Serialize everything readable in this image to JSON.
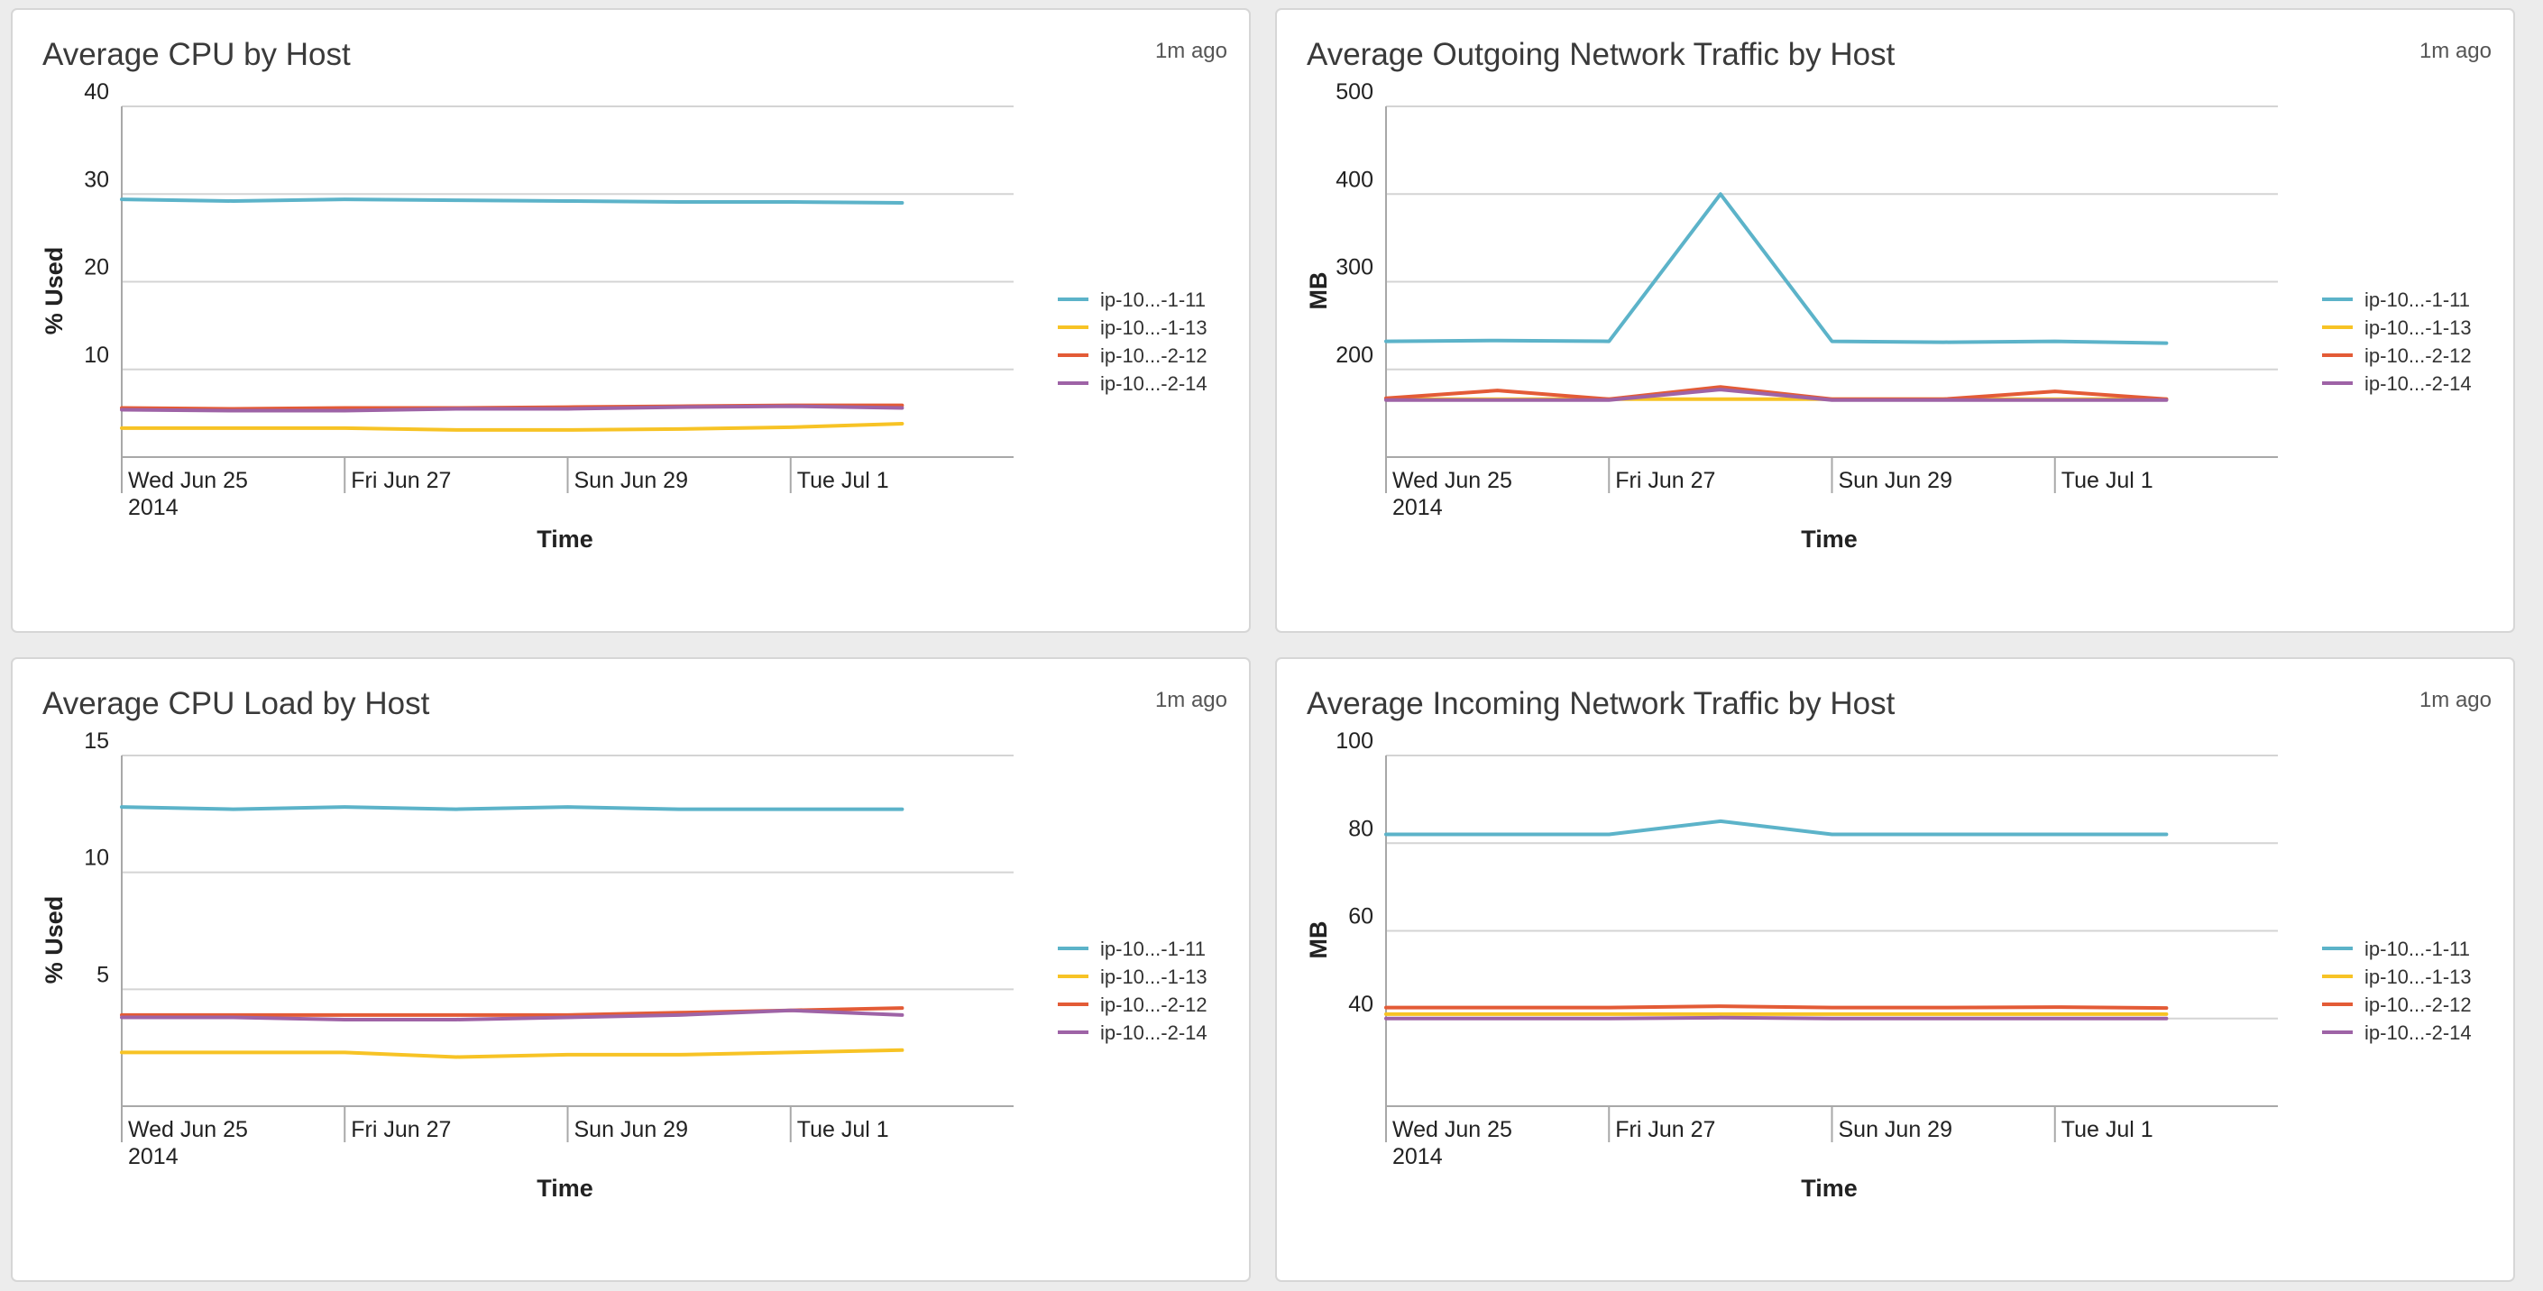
{
  "panels": [
    {
      "title": "Average CPU by Host",
      "updated": "1m ago",
      "chart_data": {
        "type": "line",
        "xlabel": "Time",
        "ylabel": "% Used",
        "ylim": [
          0,
          40
        ],
        "yticks": [
          10,
          20,
          30,
          40
        ],
        "x_domain": [
          "2014-06-25",
          "2014-07-03"
        ],
        "xticks": [
          {
            "date": "2014-06-25",
            "label": "Wed Jun 25",
            "sublabel": "2014"
          },
          {
            "date": "2014-06-27",
            "label": "Fri Jun 27",
            "sublabel": ""
          },
          {
            "date": "2014-06-29",
            "label": "Sun Jun 29",
            "sublabel": ""
          },
          {
            "date": "2014-07-01",
            "label": "Tue Jul 1",
            "sublabel": ""
          }
        ],
        "x": [
          "2014-06-25",
          "2014-06-26",
          "2014-06-27",
          "2014-06-28",
          "2014-06-29",
          "2014-06-30",
          "2014-07-01",
          "2014-07-02"
        ],
        "grid": true,
        "legend": "right",
        "series": [
          {
            "name": "ip-10...-1-11",
            "color": "#5cb3c9",
            "values": [
              29.4,
              29.2,
              29.4,
              29.3,
              29.2,
              29.1,
              29.1,
              29.0
            ]
          },
          {
            "name": "ip-10...-1-13",
            "color": "#f7c325",
            "values": [
              3.3,
              3.3,
              3.3,
              3.1,
              3.1,
              3.2,
              3.4,
              3.8
            ]
          },
          {
            "name": "ip-10...-2-12",
            "color": "#e35b36",
            "values": [
              5.6,
              5.5,
              5.6,
              5.6,
              5.7,
              5.8,
              5.9,
              5.9
            ]
          },
          {
            "name": "ip-10...-2-14",
            "color": "#9e63a6",
            "values": [
              5.4,
              5.3,
              5.3,
              5.5,
              5.5,
              5.7,
              5.8,
              5.6
            ]
          }
        ]
      }
    },
    {
      "title": "Average Outgoing Network Traffic by Host",
      "updated": "1m ago",
      "chart_data": {
        "type": "line",
        "xlabel": "Time",
        "ylabel": "MB",
        "ylim": [
          100,
          500
        ],
        "yticks": [
          200,
          300,
          400,
          500
        ],
        "x_domain": [
          "2014-06-25",
          "2014-07-03"
        ],
        "xticks": [
          {
            "date": "2014-06-25",
            "label": "Wed Jun 25",
            "sublabel": "2014"
          },
          {
            "date": "2014-06-27",
            "label": "Fri Jun 27",
            "sublabel": ""
          },
          {
            "date": "2014-06-29",
            "label": "Sun Jun 29",
            "sublabel": ""
          },
          {
            "date": "2014-07-01",
            "label": "Tue Jul 1",
            "sublabel": ""
          }
        ],
        "x": [
          "2014-06-25",
          "2014-06-26",
          "2014-06-27",
          "2014-06-28",
          "2014-06-29",
          "2014-06-30",
          "2014-07-01",
          "2014-07-02"
        ],
        "grid": true,
        "legend": "right",
        "series": [
          {
            "name": "ip-10...-1-11",
            "color": "#5cb3c9",
            "values": [
              232,
              233,
              232,
              400,
              232,
              231,
              232,
              230
            ]
          },
          {
            "name": "ip-10...-1-13",
            "color": "#f7c325",
            "values": [
              166,
              166,
              166,
              166,
              166,
              166,
              166,
              166
            ]
          },
          {
            "name": "ip-10...-2-12",
            "color": "#e35b36",
            "values": [
              167,
              176,
              166,
              180,
              166,
              166,
              175,
              166
            ]
          },
          {
            "name": "ip-10...-2-14",
            "color": "#9e63a6",
            "values": [
              165,
              165,
              165,
              177,
              165,
              165,
              165,
              165
            ]
          }
        ]
      }
    },
    {
      "title": "Average CPU Load by Host",
      "updated": "1m ago",
      "chart_data": {
        "type": "line",
        "xlabel": "Time",
        "ylabel": "% Used",
        "ylim": [
          0,
          15
        ],
        "yticks": [
          5,
          10,
          15
        ],
        "x_domain": [
          "2014-06-25",
          "2014-07-03"
        ],
        "xticks": [
          {
            "date": "2014-06-25",
            "label": "Wed Jun 25",
            "sublabel": "2014"
          },
          {
            "date": "2014-06-27",
            "label": "Fri Jun 27",
            "sublabel": ""
          },
          {
            "date": "2014-06-29",
            "label": "Sun Jun 29",
            "sublabel": ""
          },
          {
            "date": "2014-07-01",
            "label": "Tue Jul 1",
            "sublabel": ""
          }
        ],
        "x": [
          "2014-06-25",
          "2014-06-26",
          "2014-06-27",
          "2014-06-28",
          "2014-06-29",
          "2014-06-30",
          "2014-07-01",
          "2014-07-02"
        ],
        "grid": true,
        "legend": "right",
        "series": [
          {
            "name": "ip-10...-1-11",
            "color": "#5cb3c9",
            "values": [
              12.8,
              12.7,
              12.8,
              12.7,
              12.8,
              12.7,
              12.7,
              12.7
            ]
          },
          {
            "name": "ip-10...-1-13",
            "color": "#f7c325",
            "values": [
              2.3,
              2.3,
              2.3,
              2.1,
              2.2,
              2.2,
              2.3,
              2.4
            ]
          },
          {
            "name": "ip-10...-2-12",
            "color": "#e35b36",
            "values": [
              3.9,
              3.9,
              3.9,
              3.9,
              3.9,
              4.0,
              4.1,
              4.2
            ]
          },
          {
            "name": "ip-10...-2-14",
            "color": "#9e63a6",
            "values": [
              3.8,
              3.8,
              3.7,
              3.7,
              3.8,
              3.9,
              4.1,
              3.9
            ]
          }
        ]
      }
    },
    {
      "title": "Average Incoming Network Traffic by Host",
      "updated": "1m ago",
      "chart_data": {
        "type": "line",
        "xlabel": "Time",
        "ylabel": "MB",
        "ylim": [
          20,
          100
        ],
        "yticks": [
          40,
          60,
          80,
          100
        ],
        "x_domain": [
          "2014-06-25",
          "2014-07-03"
        ],
        "xticks": [
          {
            "date": "2014-06-25",
            "label": "Wed Jun 25",
            "sublabel": "2014"
          },
          {
            "date": "2014-06-27",
            "label": "Fri Jun 27",
            "sublabel": ""
          },
          {
            "date": "2014-06-29",
            "label": "Sun Jun 29",
            "sublabel": ""
          },
          {
            "date": "2014-07-01",
            "label": "Tue Jul 1",
            "sublabel": ""
          }
        ],
        "x": [
          "2014-06-25",
          "2014-06-26",
          "2014-06-27",
          "2014-06-28",
          "2014-06-29",
          "2014-06-30",
          "2014-07-01",
          "2014-07-02"
        ],
        "grid": true,
        "legend": "right",
        "series": [
          {
            "name": "ip-10...-1-11",
            "color": "#5cb3c9",
            "values": [
              82,
              82,
              82,
              85,
              82,
              82,
              82,
              82
            ]
          },
          {
            "name": "ip-10...-1-13",
            "color": "#f7c325",
            "values": [
              41,
              41,
              41,
              41,
              41,
              41,
              41,
              41
            ]
          },
          {
            "name": "ip-10...-2-12",
            "color": "#e35b36",
            "values": [
              42.5,
              42.5,
              42.5,
              42.8,
              42.5,
              42.5,
              42.6,
              42.4
            ]
          },
          {
            "name": "ip-10...-2-14",
            "color": "#9e63a6",
            "values": [
              40,
              40,
              40,
              40.2,
              40,
              40,
              40,
              40
            ]
          }
        ]
      }
    }
  ]
}
